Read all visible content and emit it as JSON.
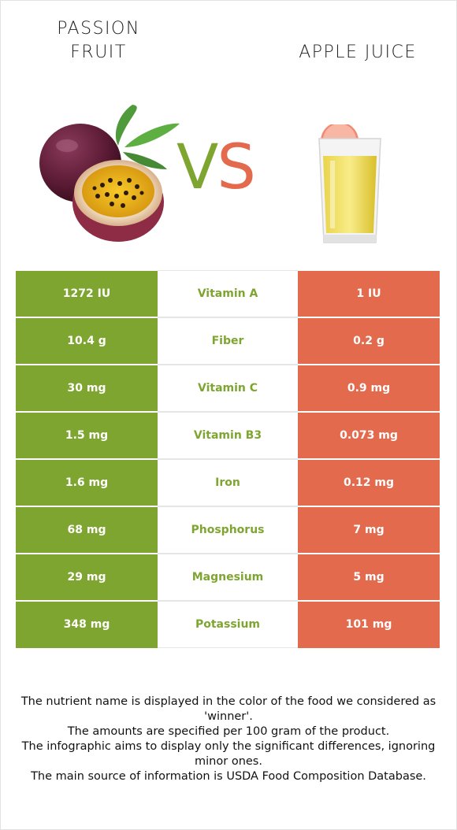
{
  "header": {
    "left_title": "PASSION\nFRUIT",
    "right_title": "APPLE JUICE",
    "vs_v": "V",
    "vs_s": "S"
  },
  "colors": {
    "left_food": "#7fa531",
    "right_food": "#e36a4d",
    "winner_label": "#7fa531"
  },
  "comparison": {
    "rows": [
      {
        "nutrient": "Vitamin A",
        "left": "1272 IU",
        "right": "1 IU"
      },
      {
        "nutrient": "Fiber",
        "left": "10.4 g",
        "right": "0.2 g"
      },
      {
        "nutrient": "Vitamin C",
        "left": "30 mg",
        "right": "0.9 mg"
      },
      {
        "nutrient": "Vitamin B3",
        "left": "1.5 mg",
        "right": "0.073 mg"
      },
      {
        "nutrient": "Iron",
        "left": "1.6 mg",
        "right": "0.12 mg"
      },
      {
        "nutrient": "Phosphorus",
        "left": "68 mg",
        "right": "7 mg"
      },
      {
        "nutrient": "Magnesium",
        "left": "29 mg",
        "right": "5 mg"
      },
      {
        "nutrient": "Potassium",
        "left": "348 mg",
        "right": "101 mg"
      }
    ]
  },
  "footnote": {
    "line1": "The nutrient name is displayed in the color of the food we considered as 'winner'.",
    "line2": "The amounts are specified per 100 gram of the product.",
    "line3": "The infographic aims to display only the significant differences, ignoring minor ones.",
    "line4": "The main source of information is USDA Food Composition Database."
  },
  "images": {
    "left_food_icon": "passion-fruit-image",
    "right_food_icon": "apple-juice-glass-image"
  }
}
